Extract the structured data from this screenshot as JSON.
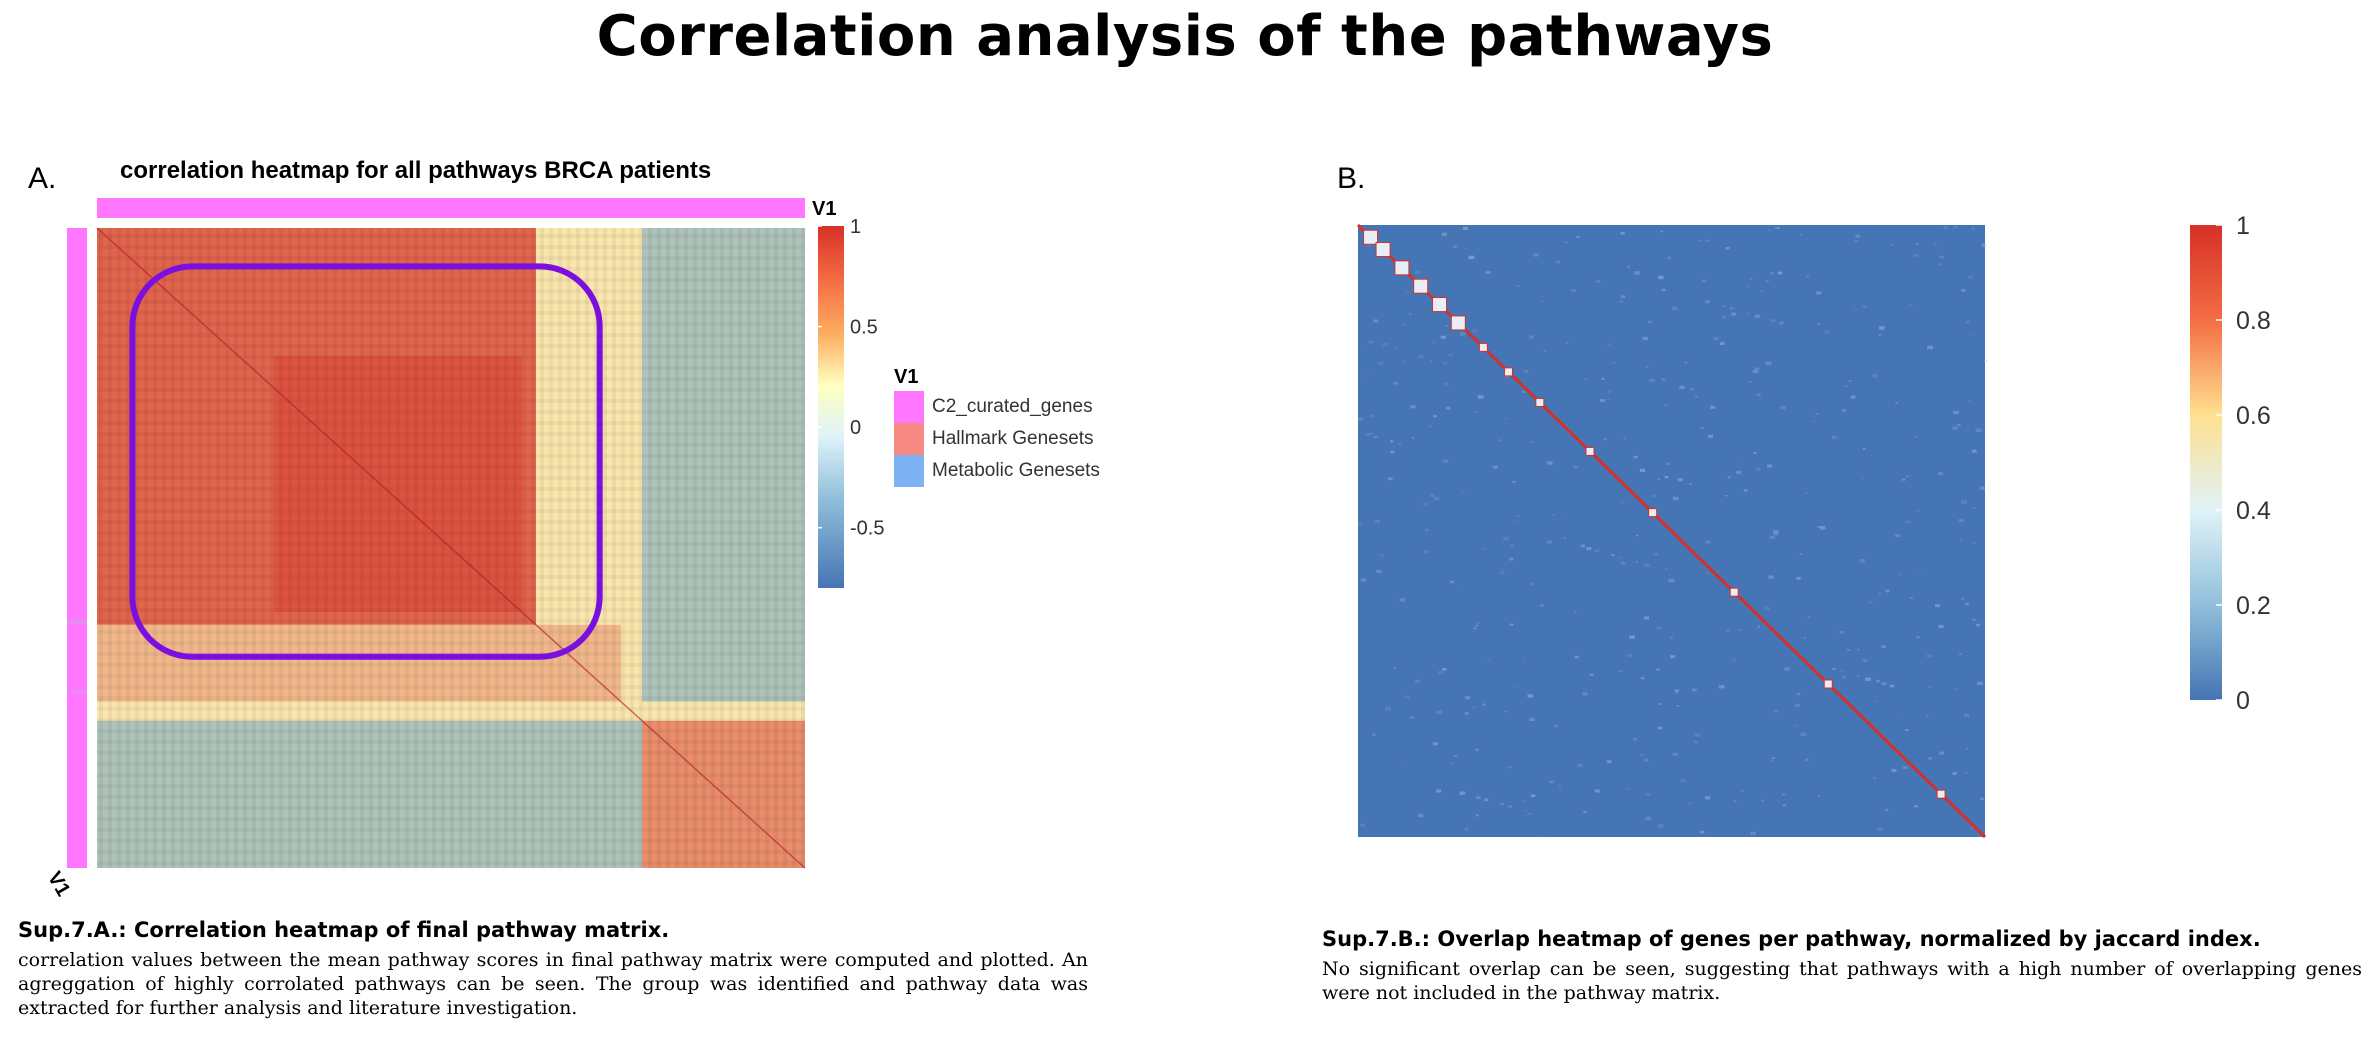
{
  "page": {
    "title": "Correlation analysis of the pathways"
  },
  "panel_a": {
    "letter": "A.",
    "caption_title": "Sup.7.A.: Correlation heatmap of final pathway matrix.",
    "caption_body": "correlation values between the mean pathway scores in final pathway matrix were computed and plotted. An agreggation of highly corrolated pathways can be seen. The group was identified and pathway data was extracted for further analysis and literature investigation."
  },
  "panel_b": {
    "letter": "B.",
    "caption_title": "Sup.7.B.: Overlap heatmap of genes per pathway, normalized by jaccard index.",
    "caption_body": "No significant overlap can be seen, suggesting that pathways with a high number of overlapping genes were not included in the pathway matrix."
  },
  "colors": {
    "low": "#4575b4",
    "mid": "#ffffbf",
    "high": "#d73027",
    "c2_curated": "#ff77ff",
    "hallmark": "#f88a84",
    "metabolic": "#7fb2f5",
    "highlight": "#7b0fe0"
  },
  "chart_data": [
    {
      "type": "heatmap",
      "title": "correlation heatmap for all pathways BRCA patients",
      "annotation_label_top": "V1",
      "annotation_label_side": "V1",
      "colorbar": {
        "ticks": [
          "1",
          "0.5",
          "0",
          "-0.5"
        ],
        "values": [
          1,
          0.5,
          0,
          -0.5
        ],
        "range": [
          -0.8,
          1
        ]
      },
      "legend": {
        "title": "V1",
        "entries": [
          {
            "label": "C2_curated_genes",
            "color": "#ff77ff"
          },
          {
            "label": "Hallmark Genesets",
            "color": "#f88a84"
          },
          {
            "label": "Metabolic Genesets",
            "color": "#7fb2f5"
          }
        ]
      },
      "blocks": [
        {
          "rows": [
            0.0,
            0.62
          ],
          "cols": [
            0.0,
            0.62
          ],
          "mean_correlation": 0.75
        },
        {
          "rows": [
            0.62,
            0.74
          ],
          "cols": [
            0.0,
            0.74
          ],
          "mean_correlation": 0.35
        },
        {
          "rows": [
            0.0,
            0.74
          ],
          "cols": [
            0.77,
            1.0
          ],
          "mean_correlation": -0.35
        },
        {
          "rows": [
            0.77,
            1.0
          ],
          "cols": [
            0.0,
            0.77
          ],
          "mean_correlation": -0.35
        },
        {
          "rows": [
            0.77,
            1.0
          ],
          "cols": [
            0.77,
            1.0
          ],
          "mean_correlation": 0.55
        }
      ],
      "highlighted_cluster": {
        "rows": [
          0.06,
          0.67
        ],
        "cols": [
          0.05,
          0.71
        ]
      }
    },
    {
      "type": "heatmap",
      "title": "",
      "colorbar": {
        "ticks": [
          "1",
          "0.8",
          "0.6",
          "0.4",
          "0.2",
          "0"
        ],
        "values": [
          1,
          0.8,
          0.6,
          0.4,
          0.2,
          0
        ],
        "range": [
          0,
          1
        ]
      },
      "background_value": 0,
      "diagonal_value": 1,
      "description_values": {
        "off_diagonal_max": 0.3
      }
    }
  ]
}
